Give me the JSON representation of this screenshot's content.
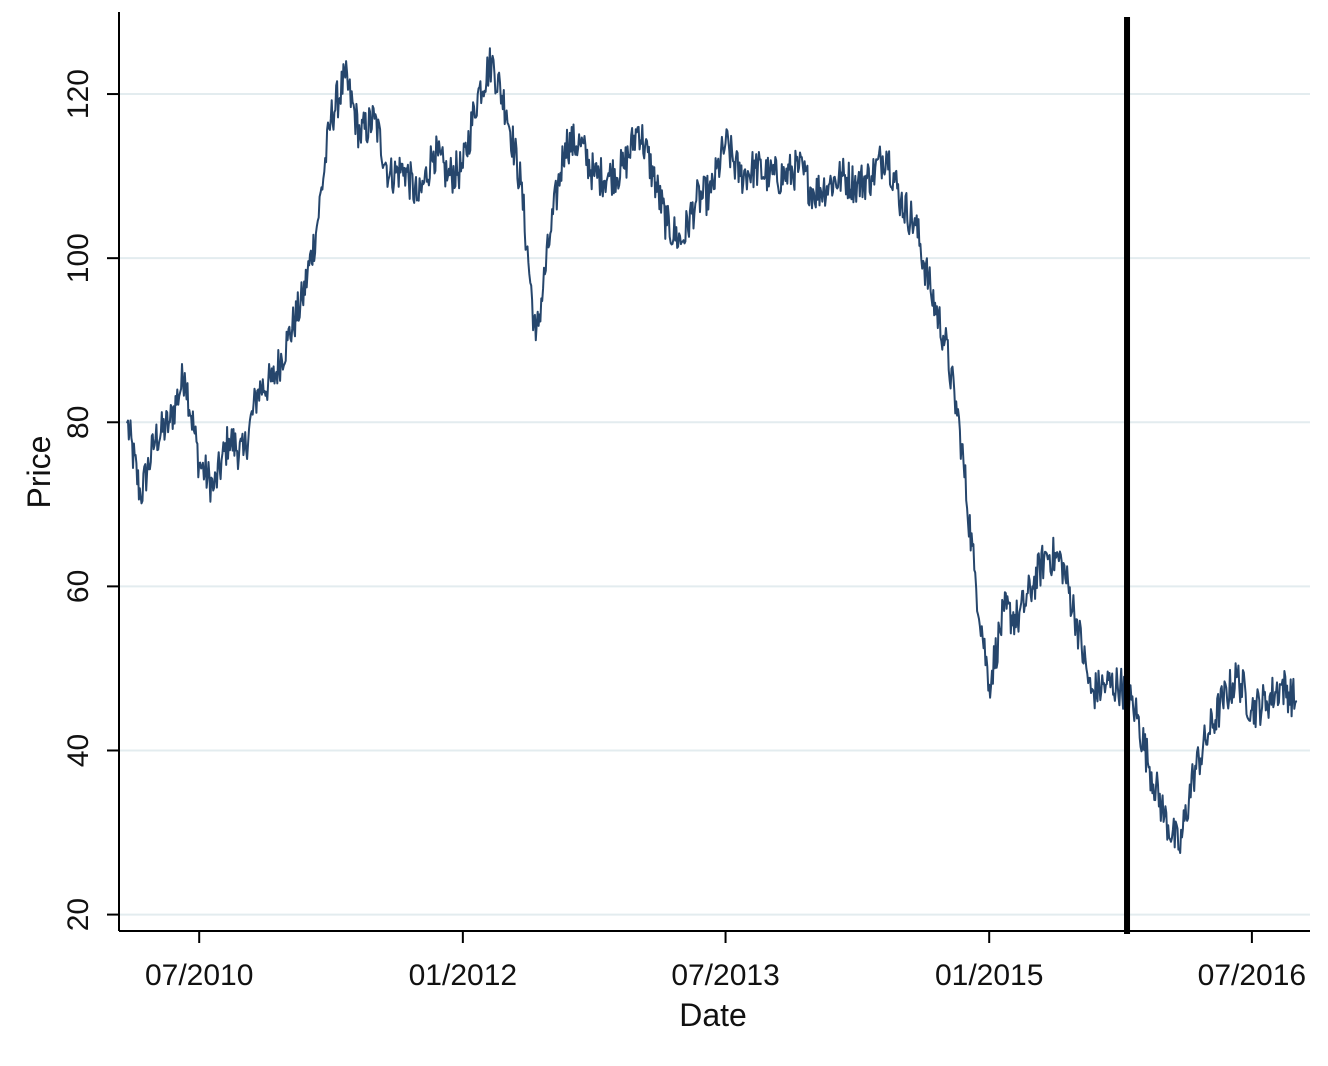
{
  "chart_data": {
    "type": "line",
    "xlabel": "Date",
    "ylabel": "Price",
    "xlim": [
      "2010-01-15",
      "2016-10-30"
    ],
    "ylim": [
      18,
      130
    ],
    "x_ticks": [
      "07/2010",
      "01/2012",
      "07/2013",
      "01/2015",
      "07/2016"
    ],
    "y_ticks": [
      20,
      40,
      60,
      80,
      100,
      120
    ],
    "grid": true,
    "vline_date": "2015-10-15",
    "colors": {
      "line": "#26466c",
      "grid": "#e3ecef",
      "axis": "#000000",
      "vline": "#000000"
    },
    "series": [
      {
        "x": [
          "2010-02-01",
          "2010-03-01",
          "2010-04-01",
          "2010-05-01",
          "2010-06-01",
          "2010-07-01",
          "2010-08-01",
          "2010-09-01",
          "2010-10-01",
          "2010-11-01",
          "2010-12-01",
          "2011-01-01",
          "2011-02-01",
          "2011-03-01",
          "2011-04-01",
          "2011-05-01",
          "2011-06-01",
          "2011-07-01",
          "2011-08-01",
          "2011-09-01",
          "2011-10-01",
          "2011-11-01",
          "2011-12-01",
          "2012-01-01",
          "2012-02-01",
          "2012-03-01",
          "2012-04-01",
          "2012-05-01",
          "2012-06-01",
          "2012-07-01",
          "2012-08-01",
          "2012-09-01",
          "2012-10-01",
          "2012-11-01",
          "2012-12-01",
          "2013-01-01",
          "2013-02-01",
          "2013-03-01",
          "2013-04-01",
          "2013-05-01",
          "2013-06-01",
          "2013-07-01",
          "2013-08-01",
          "2013-09-01",
          "2013-10-01",
          "2013-11-01",
          "2013-12-01",
          "2014-01-01",
          "2014-02-01",
          "2014-03-01",
          "2014-04-01",
          "2014-05-01",
          "2014-06-01",
          "2014-07-01",
          "2014-08-01",
          "2014-09-01",
          "2014-10-01",
          "2014-11-01",
          "2014-12-01",
          "2015-01-01",
          "2015-02-01",
          "2015-03-01",
          "2015-04-01",
          "2015-05-01",
          "2015-06-01",
          "2015-07-01",
          "2015-08-01",
          "2015-09-01",
          "2015-10-01",
          "2015-11-01",
          "2015-12-01",
          "2016-01-01",
          "2016-02-01",
          "2016-03-01",
          "2016-04-01",
          "2016-05-01",
          "2016-06-01",
          "2016-07-01",
          "2016-08-01",
          "2016-09-01",
          "2016-10-01"
        ],
        "y": [
          80,
          71,
          78,
          80,
          86,
          75,
          72,
          78,
          76,
          84,
          85,
          90,
          95,
          103,
          117,
          122,
          115,
          117,
          110,
          111,
          107,
          113,
          110,
          111,
          120,
          124,
          118,
          109,
          90,
          103,
          114,
          114,
          110,
          110,
          111,
          116,
          110,
          104,
          102,
          107,
          108,
          114,
          110,
          111,
          110,
          110,
          111,
          108,
          109,
          110,
          109,
          110,
          113,
          107,
          104,
          96,
          90,
          79,
          62,
          48,
          57,
          56,
          60,
          64,
          63,
          56,
          47,
          48,
          48,
          45,
          38,
          32,
          28,
          37,
          42,
          46,
          49,
          45,
          46,
          48,
          46
        ]
      }
    ]
  }
}
